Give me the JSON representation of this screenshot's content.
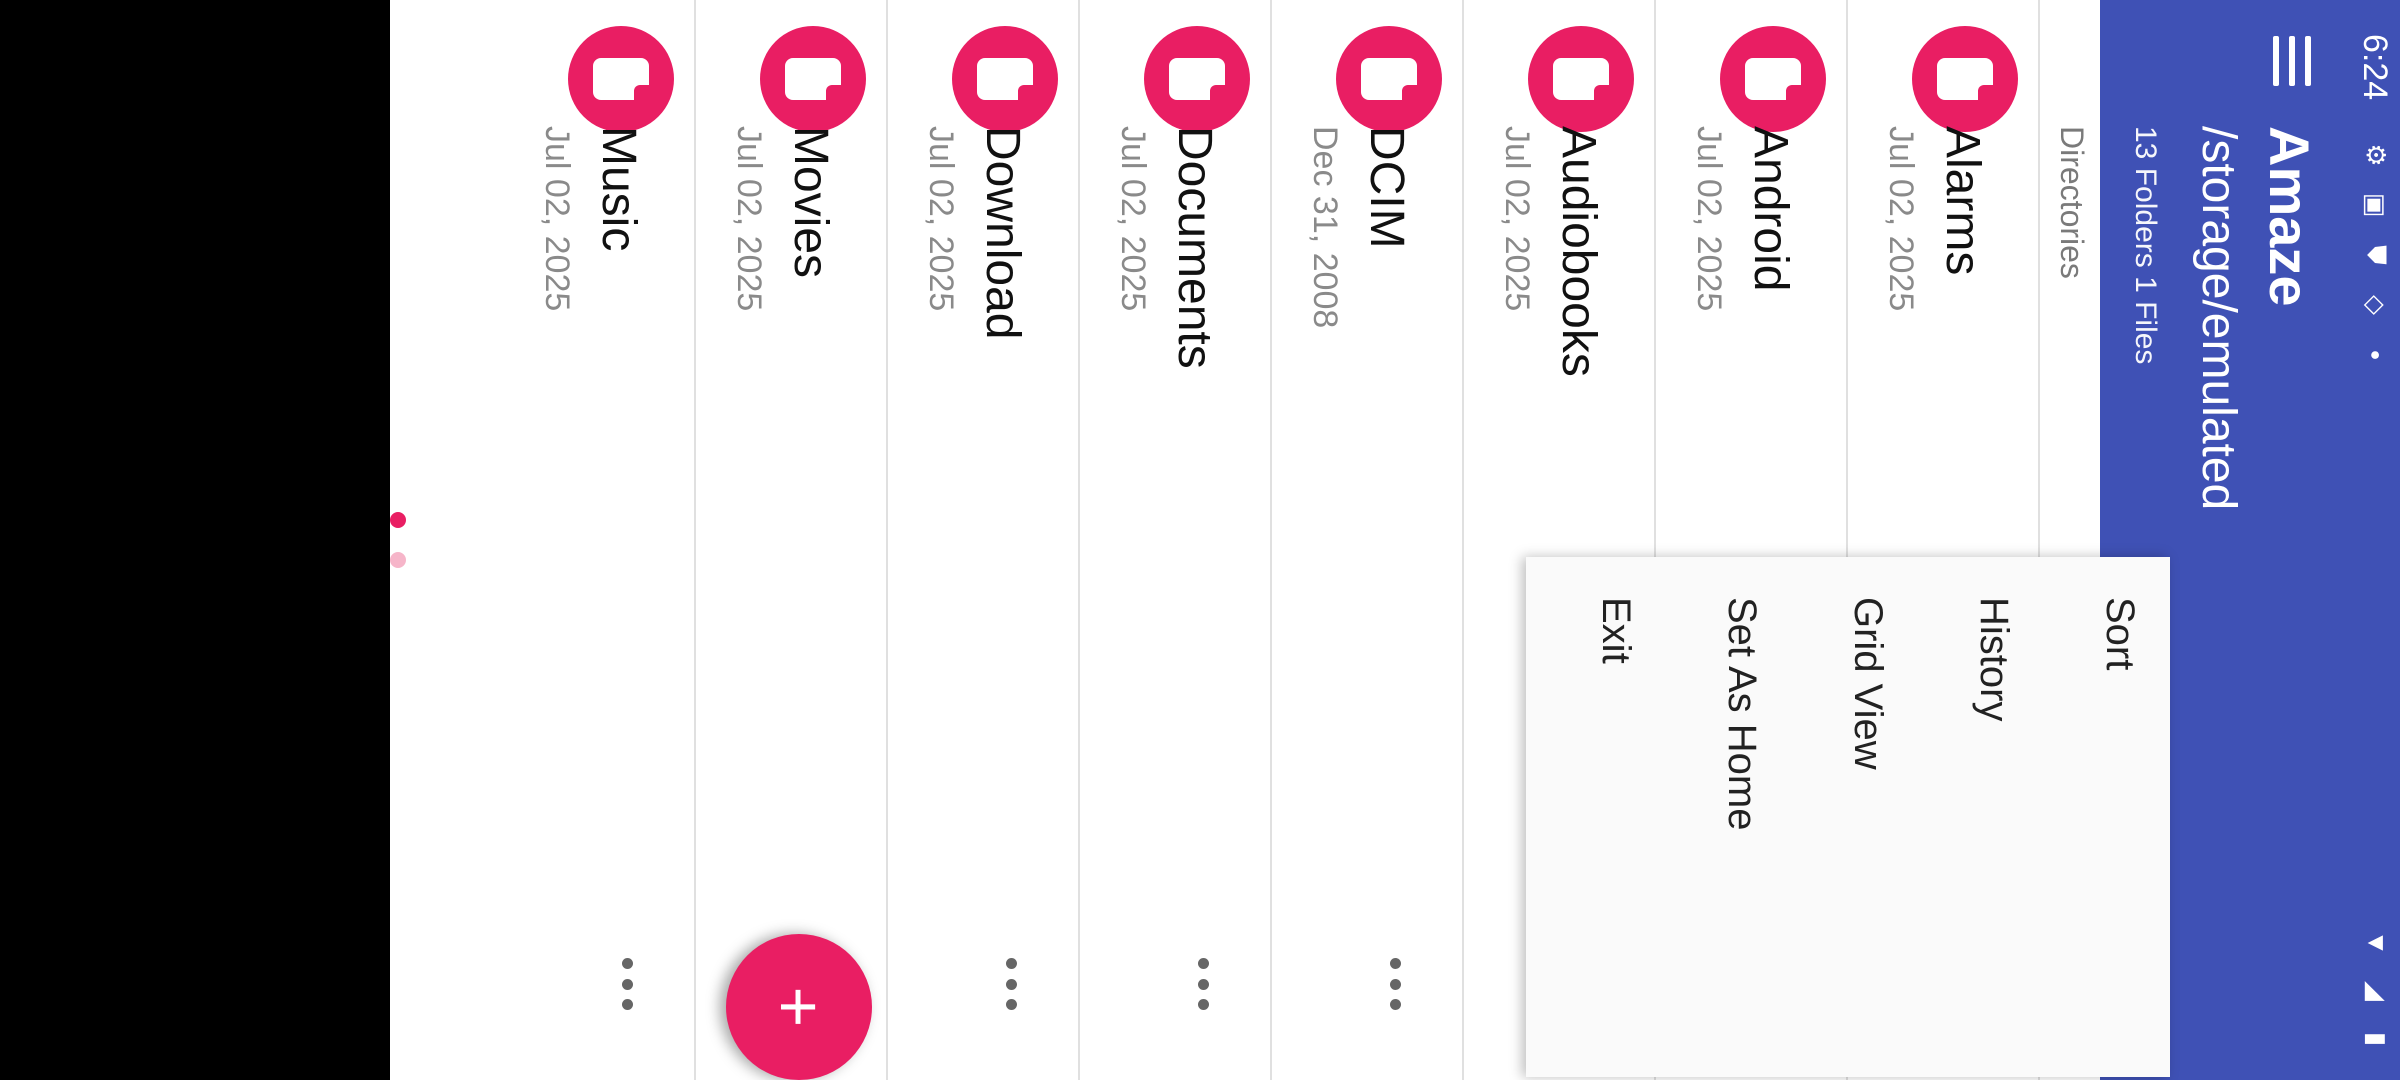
{
  "status_bar": {
    "time": "6:24",
    "icons": [
      "settings-icon",
      "accessibility-icon",
      "shield-icon",
      "wifi-assistant-icon",
      "dot-icon",
      "wifi-icon",
      "cell-signal-icon",
      "battery-icon"
    ]
  },
  "app_bar": {
    "title": "Amaze",
    "path": "/storage/emulated",
    "summary": "13 Folders 1 Files"
  },
  "section_header": "Directories",
  "folders": [
    {
      "name": "Alarms",
      "date": "Jul 02, 2025"
    },
    {
      "name": "Android",
      "date": "Jul 02, 2025"
    },
    {
      "name": "Audiobooks",
      "date": "Jul 02, 2025"
    },
    {
      "name": "DCIM",
      "date": "Dec 31, 2008"
    },
    {
      "name": "Documents",
      "date": "Jul 02, 2025"
    },
    {
      "name": "Download",
      "date": "Jul 02, 2025"
    },
    {
      "name": "Movies",
      "date": "Jul 02, 2025"
    },
    {
      "name": "Music",
      "date": "Jul 02, 2025"
    }
  ],
  "overflow_menu": {
    "items": [
      "Sort",
      "History",
      "Grid View",
      "Set As Home",
      "Exit"
    ]
  },
  "fab": {
    "label": "+"
  },
  "colors": {
    "primary": "#3F51B5",
    "accent": "#E91E63",
    "menu_bg": "#fafafa"
  }
}
